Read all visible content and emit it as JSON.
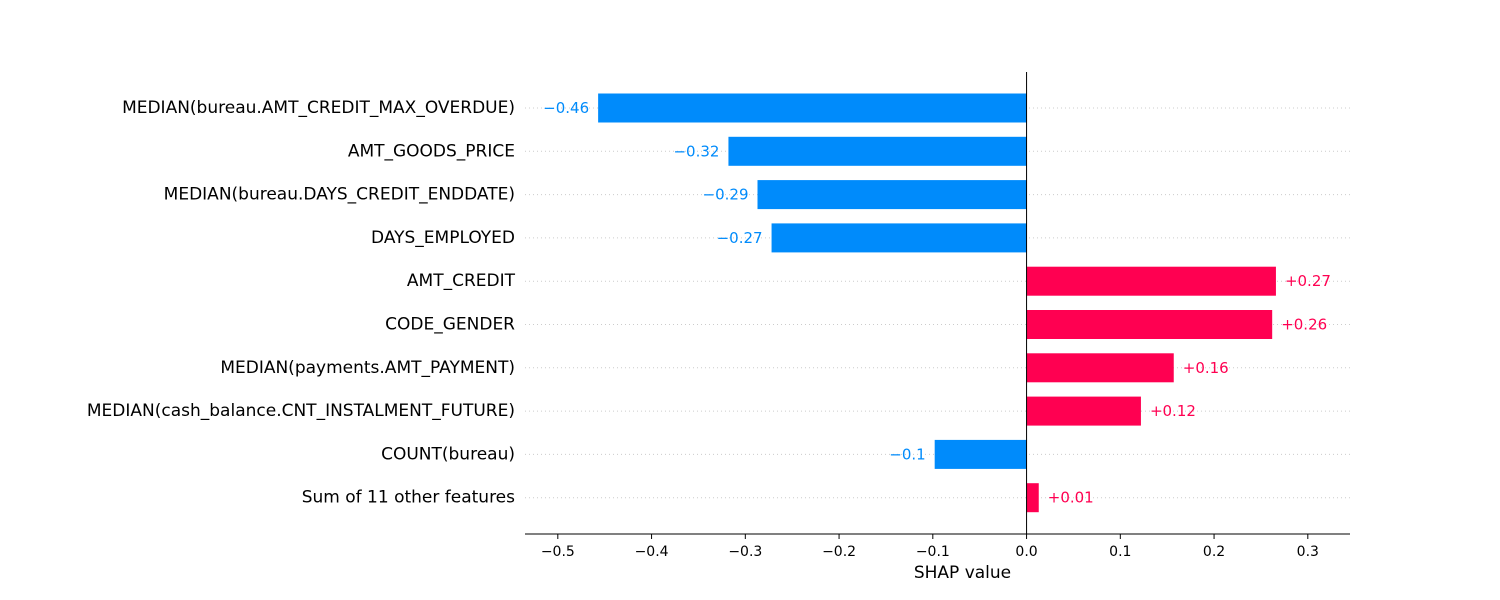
{
  "chart_data": {
    "type": "bar",
    "orientation": "horizontal",
    "xlabel": "SHAP value",
    "xlim": [
      -0.535,
      0.345
    ],
    "xticks": [
      -0.5,
      -0.4,
      -0.3,
      -0.2,
      -0.1,
      0.0,
      0.1,
      0.2,
      0.3
    ],
    "xtick_labels": [
      "−0.5",
      "−0.4",
      "−0.3",
      "−0.2",
      "−0.1",
      "0.0",
      "0.1",
      "0.2",
      "0.3"
    ],
    "grid": "horizontal dotted row guides",
    "colors": {
      "positive": "#ff0051",
      "negative": "#008bfb"
    },
    "features": [
      {
        "name": "MEDIAN(bureau.AMT_CREDIT_MAX_OVERDUE)",
        "value": -0.457,
        "label": "−0.46"
      },
      {
        "name": "AMT_GOODS_PRICE",
        "value": -0.318,
        "label": "−0.32"
      },
      {
        "name": "MEDIAN(bureau.DAYS_CREDIT_ENDDATE)",
        "value": -0.287,
        "label": "−0.29"
      },
      {
        "name": "DAYS_EMPLOYED",
        "value": -0.272,
        "label": "−0.27"
      },
      {
        "name": "AMT_CREDIT",
        "value": 0.266,
        "label": "+0.27"
      },
      {
        "name": "CODE_GENDER",
        "value": 0.262,
        "label": "+0.26"
      },
      {
        "name": "MEDIAN(payments.AMT_PAYMENT)",
        "value": 0.157,
        "label": "+0.16"
      },
      {
        "name": "MEDIAN(cash_balance.CNT_INSTALMENT_FUTURE)",
        "value": 0.122,
        "label": "+0.12"
      },
      {
        "name": "COUNT(bureau)",
        "value": -0.098,
        "label": "−0.1"
      },
      {
        "name": "Sum of 11 other features",
        "value": 0.013,
        "label": "+0.01"
      }
    ]
  }
}
